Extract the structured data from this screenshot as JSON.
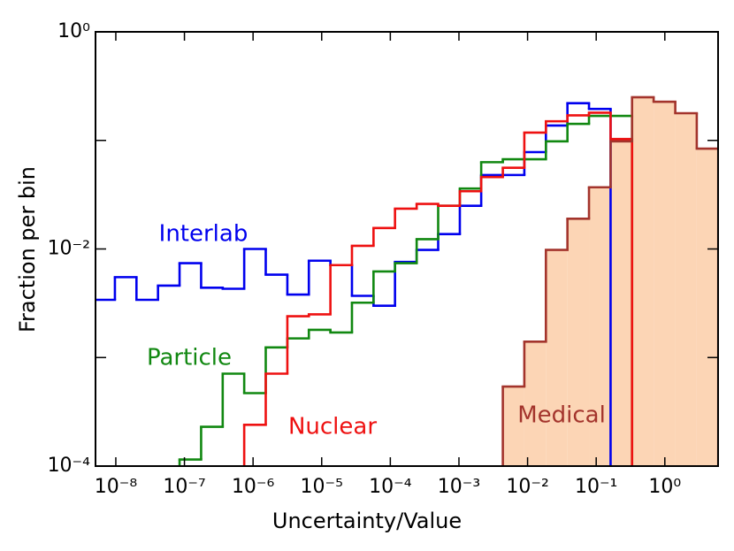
{
  "chart_data": {
    "type": "histogram",
    "xlabel": "Uncertainty/Value",
    "ylabel": "Fraction per bin",
    "xscale": "log",
    "yscale": "log",
    "xlim": [
      5.06e-09,
      5.97
    ],
    "ylim": [
      0.0001,
      1
    ],
    "xticks": [
      {
        "value": 1e-08,
        "label": "10⁻⁸"
      },
      {
        "value": 1e-07,
        "label": "10⁻⁷"
      },
      {
        "value": 1e-06,
        "label": "10⁻⁶"
      },
      {
        "value": 1e-05,
        "label": "10⁻⁵"
      },
      {
        "value": 0.0001,
        "label": "10⁻⁴"
      },
      {
        "value": 0.001,
        "label": "10⁻³"
      },
      {
        "value": 0.01,
        "label": "10⁻²"
      },
      {
        "value": 0.1,
        "label": "10⁻¹"
      },
      {
        "value": 1,
        "label": "10⁰"
      }
    ],
    "yticks": [
      {
        "value": 0.0001,
        "label": "10⁻⁴"
      },
      {
        "value": 0.01,
        "label": "10⁻²"
      },
      {
        "value": 1,
        "label": "10⁰"
      }
    ],
    "yticks_minor": [
      0.001,
      0.1
    ],
    "bins": [
      4.71e-09,
      9.7e-09,
      2e-08,
      4.12e-08,
      8.49e-08,
      1.75e-07,
      3.61e-07,
      7.43e-07,
      1.53e-06,
      3.16e-06,
      6.5e-06,
      1.34e-05,
      2.76e-05,
      5.69e-05,
      0.000117,
      0.000242,
      0.000498,
      0.00103,
      0.00211,
      0.00436,
      0.00897,
      0.0185,
      0.0381,
      0.0785,
      0.162,
      0.333,
      0.687,
      1.42,
      2.92,
      6.01
    ],
    "series": [
      {
        "name": "Medical",
        "color": "#a3342c",
        "fill": "#fcd5b5",
        "values": [
          null,
          null,
          null,
          null,
          null,
          null,
          null,
          null,
          null,
          null,
          null,
          null,
          null,
          null,
          null,
          null,
          null,
          null,
          null,
          0.00054,
          0.0014,
          0.0098,
          0.019,
          0.037,
          0.098,
          0.25,
          0.227,
          0.178,
          0.084
        ]
      },
      {
        "name": "Interlab",
        "color": "#0000ee",
        "values": [
          0.0034,
          0.0055,
          0.0034,
          0.0046,
          0.0074,
          0.0044,
          0.0043,
          0.01,
          0.0058,
          0.0038,
          0.0078,
          0.0071,
          0.0037,
          0.003,
          0.0076,
          0.0098,
          0.0137,
          0.025,
          0.048,
          0.048,
          0.078,
          0.137,
          0.22,
          0.195,
          null,
          null,
          null,
          null,
          null
        ]
      },
      {
        "name": "Particle",
        "color": "#118811",
        "values": [
          null,
          null,
          null,
          null,
          0.000115,
          0.00023,
          0.00071,
          0.00047,
          0.00124,
          0.0015,
          0.0018,
          0.0017,
          0.0032,
          0.0062,
          0.0074,
          0.0123,
          0.025,
          0.036,
          0.063,
          0.067,
          0.067,
          0.098,
          0.142,
          0.168,
          0.168,
          null,
          null,
          null,
          null
        ]
      },
      {
        "name": "Nuclear",
        "color": "#ee1111",
        "values": [
          null,
          null,
          null,
          null,
          null,
          null,
          null,
          0.00024,
          0.00071,
          0.0024,
          0.0025,
          0.0071,
          0.0107,
          0.0156,
          0.0235,
          0.026,
          0.025,
          0.034,
          0.046,
          0.056,
          0.118,
          0.15,
          0.17,
          0.18,
          0.103,
          null,
          null,
          null,
          null
        ]
      }
    ]
  }
}
